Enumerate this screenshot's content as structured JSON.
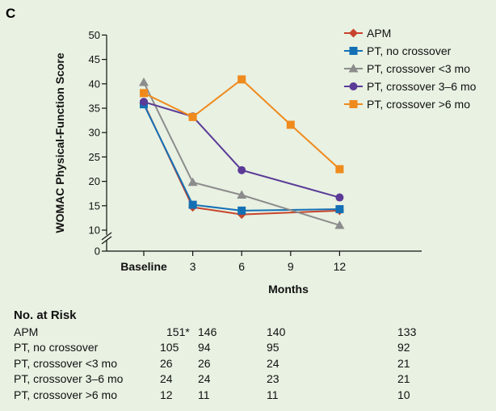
{
  "panel_label": "C",
  "colors": {
    "APM": "#c8432b",
    "PT, no crossover": "#1470b5",
    "PT, crossover <3 mo": "#8c8c8c",
    "PT, crossover 3–6 mo": "#5b3b97",
    "PT, crossover >6 mo": "#ef8a1c"
  },
  "chart_data": {
    "type": "line",
    "ylabel": "WOMAC Physical-Function Score",
    "xlabel": "Months",
    "x": [
      0,
      3,
      6,
      9,
      12
    ],
    "x_tick_labels": [
      "Baseline",
      "3",
      "6",
      "9",
      "12"
    ],
    "y_ticks": [
      0,
      10,
      15,
      20,
      25,
      30,
      35,
      40,
      45,
      50
    ],
    "ylim": [
      0,
      50
    ],
    "y_axis_break": true,
    "legend_position": "top-right",
    "series": [
      {
        "name": "APM",
        "marker": "diamond",
        "x": [
          0,
          3,
          6,
          12
        ],
        "values": [
          36,
          14.7,
          13.2,
          14.0
        ]
      },
      {
        "name": "PT, no crossover",
        "marker": "square",
        "x": [
          0,
          3,
          6,
          12
        ],
        "values": [
          35.8,
          15.2,
          14.0,
          14.3
        ]
      },
      {
        "name": "PT, crossover <3 mo",
        "marker": "triangle",
        "x": [
          0,
          3,
          6,
          12
        ],
        "values": [
          40.3,
          19.8,
          17.2,
          11.0
        ]
      },
      {
        "name": "PT, crossover 3–6 mo",
        "marker": "circle",
        "x": [
          0,
          3,
          6,
          12
        ],
        "values": [
          36.3,
          33.3,
          22.3,
          16.7
        ]
      },
      {
        "name": "PT, crossover >6 mo",
        "marker": "square",
        "x": [
          0,
          3,
          6,
          9,
          12
        ],
        "values": [
          38.1,
          33.2,
          40.9,
          31.6,
          22.5
        ]
      }
    ]
  },
  "risk_table": {
    "title": "No. at Risk",
    "rows": [
      {
        "label": "APM",
        "values": [
          "151*",
          "146",
          "140",
          "133"
        ]
      },
      {
        "label": "PT, no crossover",
        "values": [
          "105",
          "94",
          "95",
          "92"
        ]
      },
      {
        "label": "PT, crossover <3 mo",
        "values": [
          "26",
          "26",
          "24",
          "21"
        ]
      },
      {
        "label": "PT, crossover 3–6 mo",
        "values": [
          "24",
          "24",
          "23",
          "21"
        ]
      },
      {
        "label": "PT, crossover >6 mo",
        "values": [
          "12",
          "11",
          "11",
          "10"
        ]
      }
    ]
  }
}
